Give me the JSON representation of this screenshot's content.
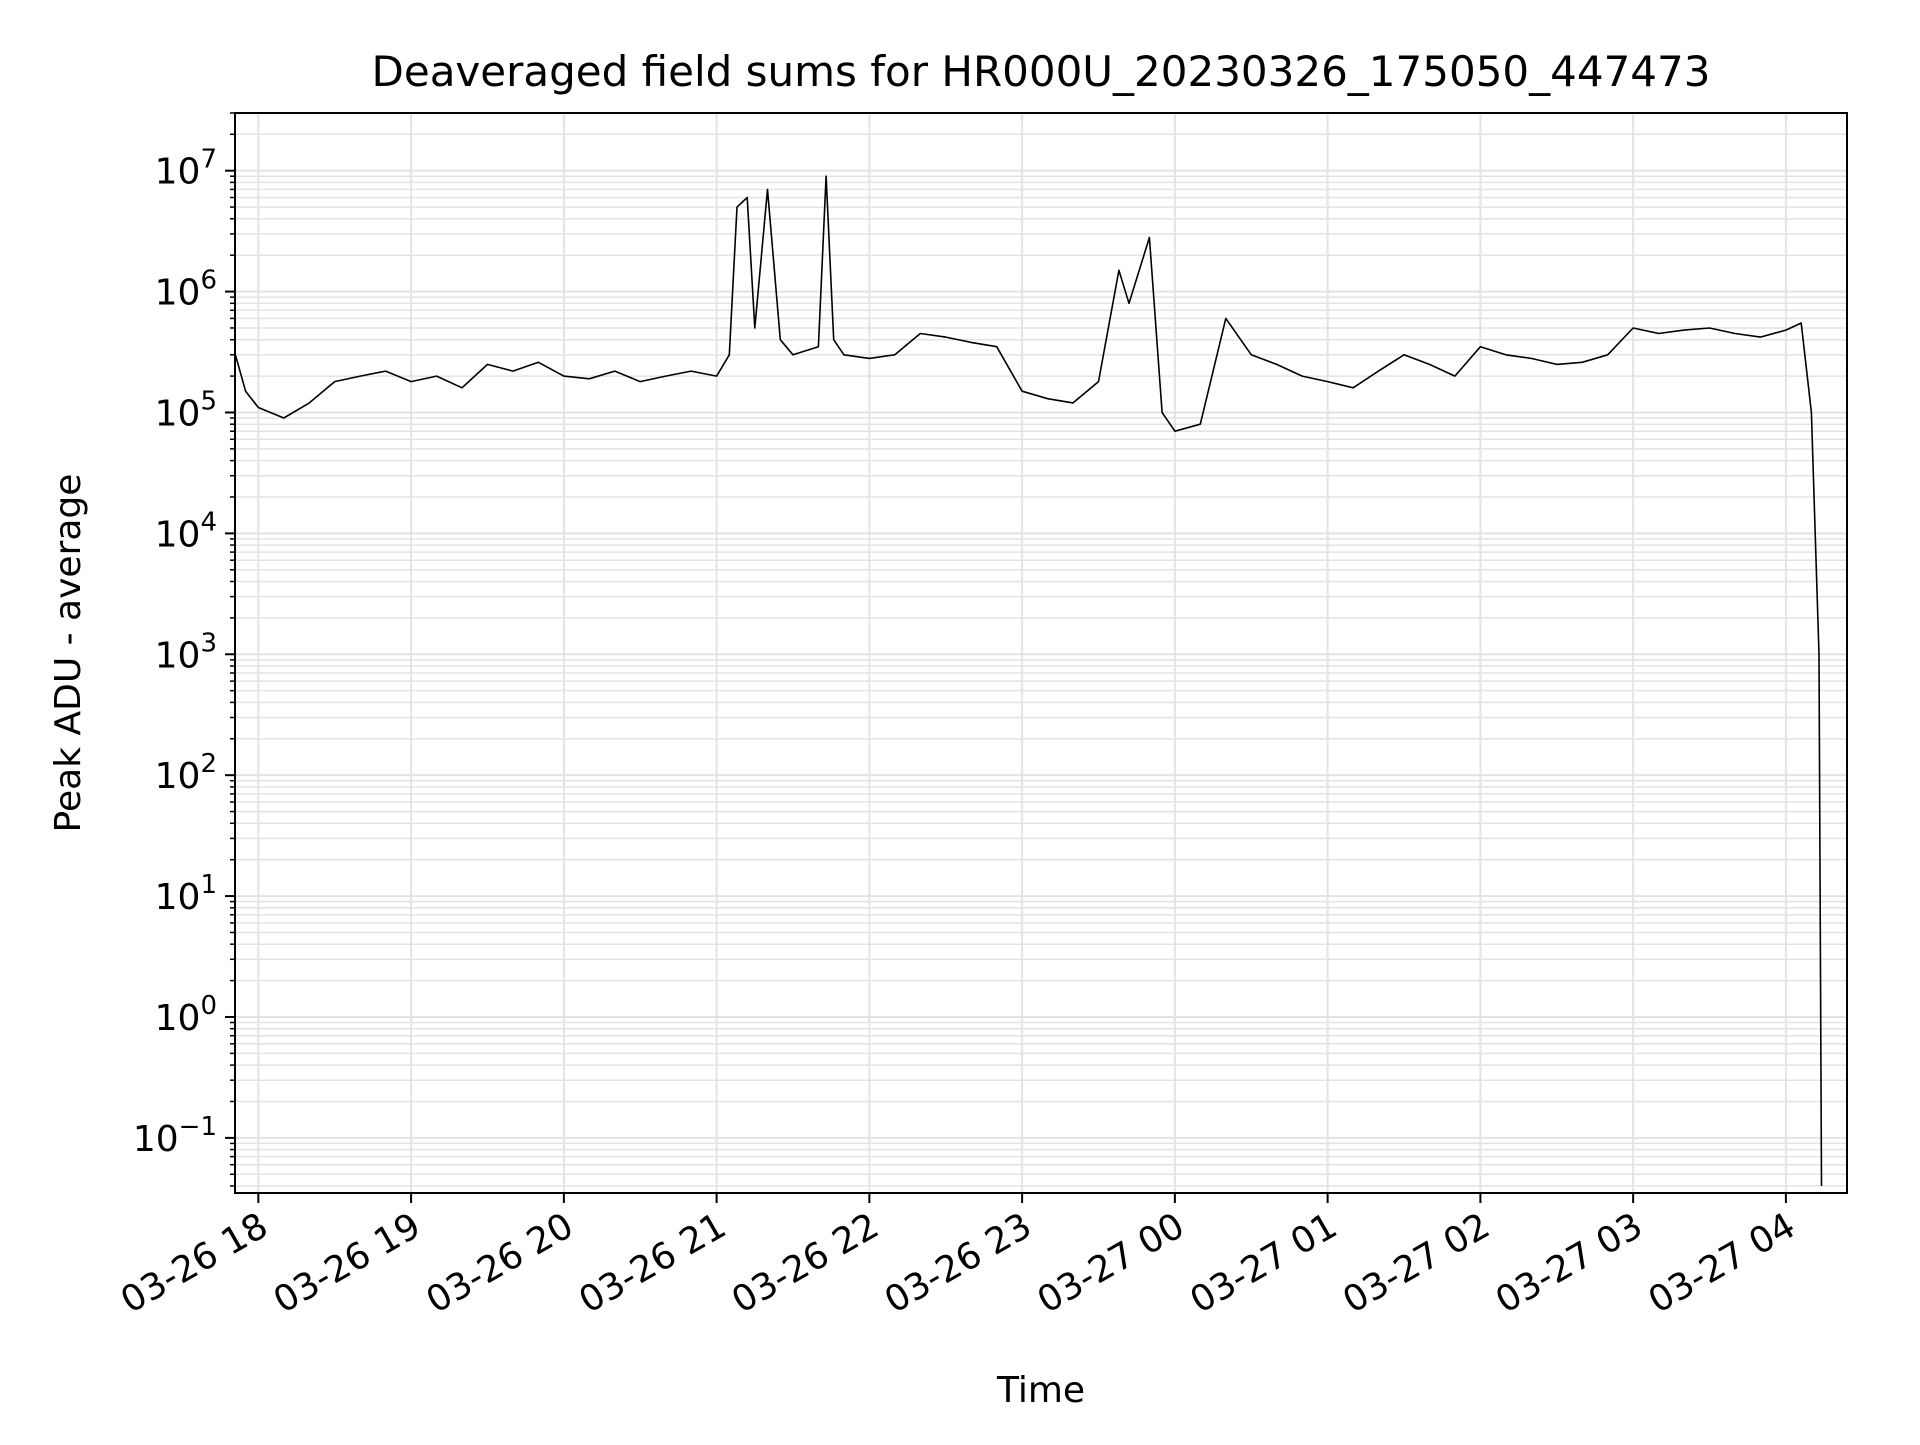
{
  "chart_data": {
    "type": "line",
    "title": "Deaveraged field sums for HR000U_20230326_175050_447473",
    "xlabel": "Time",
    "ylabel": "Peak ADU - average",
    "y_scale": "log",
    "ylim": [
      0.035,
      30000000.0
    ],
    "xlim": [
      "2023-03-26 17:50:50",
      "2023-03-27 04:24:00"
    ],
    "grid": true,
    "legend": "none",
    "line_color": "#000000",
    "grid_color": "#e3e3e3",
    "x_ticks": [
      {
        "label": "03-26 18",
        "t": "2023-03-26 18:00"
      },
      {
        "label": "03-26 19",
        "t": "2023-03-26 19:00"
      },
      {
        "label": "03-26 20",
        "t": "2023-03-26 20:00"
      },
      {
        "label": "03-26 21",
        "t": "2023-03-26 21:00"
      },
      {
        "label": "03-26 22",
        "t": "2023-03-26 22:00"
      },
      {
        "label": "03-26 23",
        "t": "2023-03-26 23:00"
      },
      {
        "label": "03-27 00",
        "t": "2023-03-27 00:00"
      },
      {
        "label": "03-27 01",
        "t": "2023-03-27 01:00"
      },
      {
        "label": "03-27 02",
        "t": "2023-03-27 02:00"
      },
      {
        "label": "03-27 03",
        "t": "2023-03-27 03:00"
      },
      {
        "label": "03-27 04",
        "t": "2023-03-27 04:00"
      }
    ],
    "y_ticks": [
      {
        "mant": "10",
        "exp": "7",
        "value": 10000000.0
      },
      {
        "mant": "10",
        "exp": "6",
        "value": 1000000.0
      },
      {
        "mant": "10",
        "exp": "5",
        "value": 100000.0
      },
      {
        "mant": "10",
        "exp": "4",
        "value": 10000.0
      },
      {
        "mant": "10",
        "exp": "3",
        "value": 1000.0
      },
      {
        "mant": "10",
        "exp": "2",
        "value": 100.0
      },
      {
        "mant": "10",
        "exp": "1",
        "value": 10.0
      },
      {
        "mant": "10",
        "exp": "0",
        "value": 1
      },
      {
        "mant": "10",
        "exp": "−1",
        "value": 0.1
      }
    ],
    "series": [
      {
        "points": [
          [
            "2023-03-26 17:51",
            300000
          ],
          [
            "2023-03-26 17:55",
            150000
          ],
          [
            "2023-03-26 18:00",
            110000
          ],
          [
            "2023-03-26 18:10",
            90000
          ],
          [
            "2023-03-26 18:20",
            120000
          ],
          [
            "2023-03-26 18:30",
            180000
          ],
          [
            "2023-03-26 18:40",
            200000
          ],
          [
            "2023-03-26 18:50",
            220000
          ],
          [
            "2023-03-26 19:00",
            180000
          ],
          [
            "2023-03-26 19:10",
            200000
          ],
          [
            "2023-03-26 19:20",
            160000
          ],
          [
            "2023-03-26 19:30",
            250000
          ],
          [
            "2023-03-26 19:40",
            220000
          ],
          [
            "2023-03-26 19:50",
            260000
          ],
          [
            "2023-03-26 20:00",
            200000
          ],
          [
            "2023-03-26 20:10",
            190000
          ],
          [
            "2023-03-26 20:20",
            220000
          ],
          [
            "2023-03-26 20:30",
            180000
          ],
          [
            "2023-03-26 20:40",
            200000
          ],
          [
            "2023-03-26 20:50",
            220000
          ],
          [
            "2023-03-26 21:00",
            200000
          ],
          [
            "2023-03-26 21:05",
            300000
          ],
          [
            "2023-03-26 21:08",
            5000000
          ],
          [
            "2023-03-26 21:12",
            6000000
          ],
          [
            "2023-03-26 21:15",
            500000
          ],
          [
            "2023-03-26 21:20",
            7000000
          ],
          [
            "2023-03-26 21:25",
            400000
          ],
          [
            "2023-03-26 21:30",
            300000
          ],
          [
            "2023-03-26 21:40",
            350000
          ],
          [
            "2023-03-26 21:43",
            9000000
          ],
          [
            "2023-03-26 21:46",
            400000
          ],
          [
            "2023-03-26 21:50",
            300000
          ],
          [
            "2023-03-26 22:00",
            280000
          ],
          [
            "2023-03-26 22:10",
            300000
          ],
          [
            "2023-03-26 22:20",
            450000
          ],
          [
            "2023-03-26 22:30",
            420000
          ],
          [
            "2023-03-26 22:40",
            380000
          ],
          [
            "2023-03-26 22:50",
            350000
          ],
          [
            "2023-03-26 23:00",
            150000
          ],
          [
            "2023-03-26 23:10",
            130000
          ],
          [
            "2023-03-26 23:20",
            120000
          ],
          [
            "2023-03-26 23:30",
            180000
          ],
          [
            "2023-03-26 23:38",
            1500000
          ],
          [
            "2023-03-26 23:42",
            800000
          ],
          [
            "2023-03-26 23:50",
            2800000
          ],
          [
            "2023-03-26 23:55",
            100000
          ],
          [
            "2023-03-27 00:00",
            70000
          ],
          [
            "2023-03-27 00:10",
            80000
          ],
          [
            "2023-03-27 00:20",
            600000
          ],
          [
            "2023-03-27 00:30",
            300000
          ],
          [
            "2023-03-27 00:40",
            250000
          ],
          [
            "2023-03-27 00:50",
            200000
          ],
          [
            "2023-03-27 01:00",
            180000
          ],
          [
            "2023-03-27 01:10",
            160000
          ],
          [
            "2023-03-27 01:20",
            220000
          ],
          [
            "2023-03-27 01:30",
            300000
          ],
          [
            "2023-03-27 01:40",
            250000
          ],
          [
            "2023-03-27 01:50",
            200000
          ],
          [
            "2023-03-27 02:00",
            350000
          ],
          [
            "2023-03-27 02:10",
            300000
          ],
          [
            "2023-03-27 02:20",
            280000
          ],
          [
            "2023-03-27 02:30",
            250000
          ],
          [
            "2023-03-27 02:40",
            260000
          ],
          [
            "2023-03-27 02:50",
            300000
          ],
          [
            "2023-03-27 03:00",
            500000
          ],
          [
            "2023-03-27 03:10",
            450000
          ],
          [
            "2023-03-27 03:20",
            480000
          ],
          [
            "2023-03-27 03:30",
            500000
          ],
          [
            "2023-03-27 03:40",
            450000
          ],
          [
            "2023-03-27 03:50",
            420000
          ],
          [
            "2023-03-27 04:00",
            480000
          ],
          [
            "2023-03-27 04:06",
            550000
          ],
          [
            "2023-03-27 04:10",
            100000
          ],
          [
            "2023-03-27 04:13",
            1000
          ],
          [
            "2023-03-27 04:14",
            0.04
          ]
        ]
      }
    ]
  }
}
